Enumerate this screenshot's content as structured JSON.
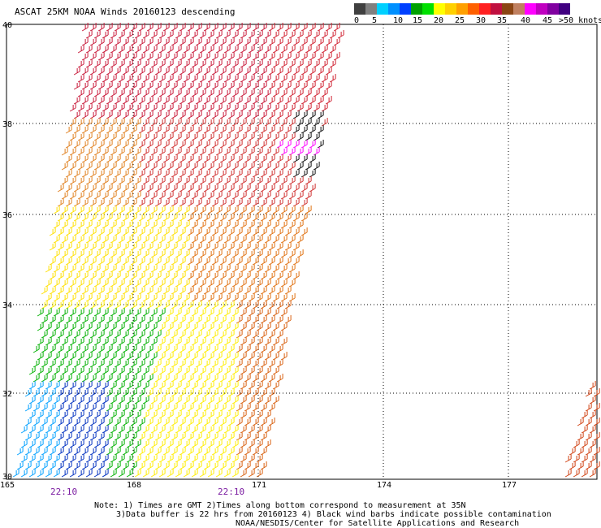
{
  "title": "ASCAT 25KM NOAA Winds 20160123 descending",
  "legend": {
    "labels": [
      "0",
      "5",
      "10",
      "15",
      "20",
      "25",
      "30",
      "35",
      "40",
      "45",
      ">50 knots"
    ],
    "colors": [
      "#404040",
      "#808080",
      "#00d0ff",
      "#0090ff",
      "#0040ff",
      "#00a000",
      "#00e000",
      "#ffff00",
      "#ffd000",
      "#ffa000",
      "#ff6000",
      "#ff2020",
      "#c01040",
      "#8b4513",
      "#c08060",
      "#ff00ff",
      "#c000c0",
      "#8000a0",
      "#400080"
    ]
  },
  "map": {
    "lat_labels": [
      "40",
      "38",
      "36",
      "34",
      "32",
      "30"
    ],
    "lon_labels": [
      "165",
      "168",
      "171",
      "174",
      "177"
    ],
    "time_labels": [
      "22:10",
      "22:10"
    ]
  },
  "notes": {
    "line1": "Note: 1) Times are GMT 2)Times along bottom correspond to measurement at 35N",
    "line2": "3)Data buffer is 22 hrs from 20160123 4) Black wind barbs indicate possible contamination",
    "line3": "NOAA/NESDIS/Center for Satellite Applications and Research"
  }
}
